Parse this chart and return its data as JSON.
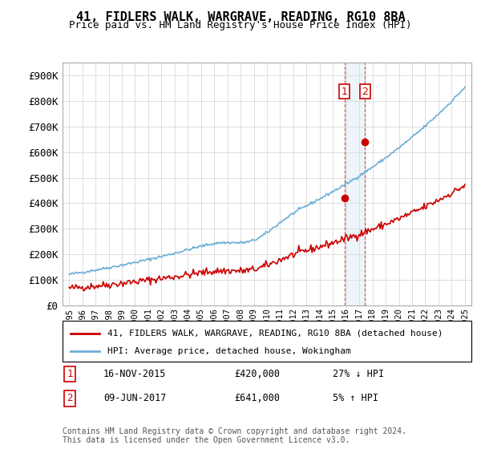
{
  "title": "41, FIDLERS WALK, WARGRAVE, READING, RG10 8BA",
  "subtitle": "Price paid vs. HM Land Registry's House Price Index (HPI)",
  "hpi_color": "#6baed6",
  "price_color": "#cc0000",
  "sale1_date": 2015.88,
  "sale1_price": 420000,
  "sale2_date": 2017.44,
  "sale2_price": 641000,
  "sale1_label": "16-NOV-2015    £420,000       27% ↓ HPI",
  "sale2_label": "09-JUN-2017    £641,000       5% ↑ HPI",
  "legend_label1": "41, FIDLERS WALK, WARGRAVE, READING, RG10 8BA (detached house)",
  "legend_label2": "HPI: Average price, detached house, Wokingham",
  "footer": "Contains HM Land Registry data © Crown copyright and database right 2024.\nThis data is licensed under the Open Government Licence v3.0.",
  "ylim": [
    0,
    950000
  ],
  "xlim_start": 1994.5,
  "xlim_end": 2025.5,
  "yticks": [
    0,
    100000,
    200000,
    300000,
    400000,
    500000,
    600000,
    700000,
    800000,
    900000
  ],
  "ytick_labels": [
    "£0",
    "£100K",
    "£200K",
    "£300K",
    "£400K",
    "£500K",
    "£600K",
    "£700K",
    "£800K",
    "£900K"
  ],
  "xticks": [
    1995,
    1996,
    1997,
    1998,
    1999,
    2000,
    2001,
    2002,
    2003,
    2004,
    2005,
    2006,
    2007,
    2008,
    2009,
    2010,
    2011,
    2012,
    2013,
    2014,
    2015,
    2016,
    2017,
    2018,
    2019,
    2020,
    2021,
    2022,
    2023,
    2024,
    2025
  ],
  "shaded_x1": 2015.88,
  "shaded_x2": 2017.44
}
